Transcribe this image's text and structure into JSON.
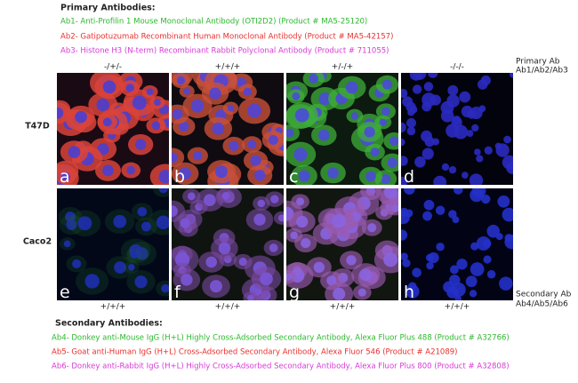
{
  "header": {
    "title": "Primary Antibodies:",
    "lines": [
      "Ab1- Anti-Profilin 1 Mouse Monoclonal Antibody (OTI2D2) (Product # MA5-25120)",
      "Ab2- Gatipotuzumab Recombinant Human Monoclonal Antibody (Product # MA5-42157)",
      "Ab3- Histone H3 (N-term) Recombinant Rabbit Polyclonal Antibody (Product # 711055)"
    ]
  },
  "primary_label": [
    "Primary Ab",
    "Ab1/Ab2/Ab3"
  ],
  "columns_top": [
    "-/+/-",
    "+/+/+",
    "+/-/+",
    "-/-/-"
  ],
  "rows": [
    "T47D",
    "Caco2"
  ],
  "panels": [
    "a",
    "b",
    "c",
    "d",
    "e",
    "f",
    "g",
    "h"
  ],
  "columns_bottom": [
    "+/+/+",
    "+/+/+",
    "+/+/+",
    "+/+/+"
  ],
  "secondary_label": [
    "Secondary Ab",
    "Ab4/Ab5/Ab6"
  ],
  "footer": {
    "title": "Secondary Antibodies:",
    "lines": [
      "Ab4- Donkey anti-Mouse IgG (H+L) Highly Cross-Adsorbed Secondary Antibody, Alexa Fluor Plus 488 (Product # A32766)",
      "Ab5- Goat anti-Human IgG (H+L) Cross-Adsorbed Secondary Antibody, Alexa Fluor 546 (Product # A21089)",
      "Ab6- Donkey anti-Rabbit IgG (H+L) Highly Cross-Adsorbed Secondary Antibody, Alexa Fluor Plus 800 (Product # A32808)"
    ]
  }
}
